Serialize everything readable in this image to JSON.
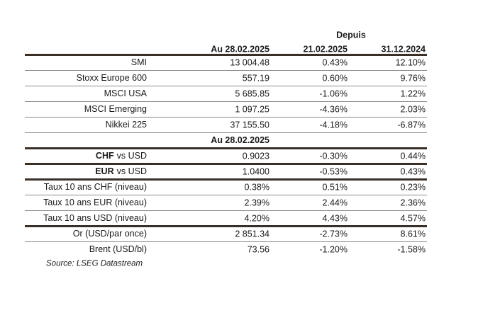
{
  "header": {
    "group": "Depuis",
    "columns": [
      "Au 28.02.2025",
      "21.02.2025",
      "31.12.2024"
    ]
  },
  "groups": [
    {
      "rows": [
        {
          "label": "SMI",
          "cells": [
            "13 004.48",
            "0.43%",
            "12.10%"
          ]
        },
        {
          "label": "Stoxx Europe 600",
          "cells": [
            "557.19",
            "0.60%",
            "9.76%"
          ]
        },
        {
          "label": "MSCI USA",
          "cells": [
            "5 685.85",
            "-1.06%",
            "1.22%"
          ]
        },
        {
          "label": "MSCI Emerging",
          "cells": [
            "1 097.25",
            "-4.36%",
            "2.03%"
          ]
        },
        {
          "label": "Nikkei 225",
          "cells": [
            "37 155.50",
            "-4.18%",
            "-6.87%"
          ]
        }
      ]
    },
    {
      "heading": "Au 28.02.2025",
      "rows": [
        {
          "label_bold": "CHF",
          "label": "vs USD",
          "cells": [
            "0.9023",
            "-0.30%",
            "0.44%"
          ]
        }
      ]
    },
    {
      "rows": [
        {
          "label_bold": "EUR",
          "label": "vs USD",
          "cells": [
            "1.0400",
            "-0.53%",
            "0.43%"
          ]
        }
      ]
    },
    {
      "rows": [
        {
          "label": "Taux 10 ans CHF (niveau)",
          "cells": [
            "0.38%",
            "0.51%",
            "0.23%"
          ]
        },
        {
          "label": "Taux 10 ans EUR (niveau)",
          "cells": [
            "2.39%",
            "2.44%",
            "2.36%"
          ]
        },
        {
          "label": "Taux 10 ans USD (niveau)",
          "cells": [
            "4.20%",
            "4.43%",
            "4.57%"
          ]
        }
      ]
    },
    {
      "rows": [
        {
          "label": "Or (USD/par once)",
          "cells": [
            "2 851.34",
            "-2.73%",
            "8.61%"
          ]
        },
        {
          "label": "Brent (USD/bl)",
          "cells": [
            "73.56",
            "-1.20%",
            "-1.58%"
          ]
        }
      ]
    }
  ],
  "source": "Source: LSEG Datastream"
}
